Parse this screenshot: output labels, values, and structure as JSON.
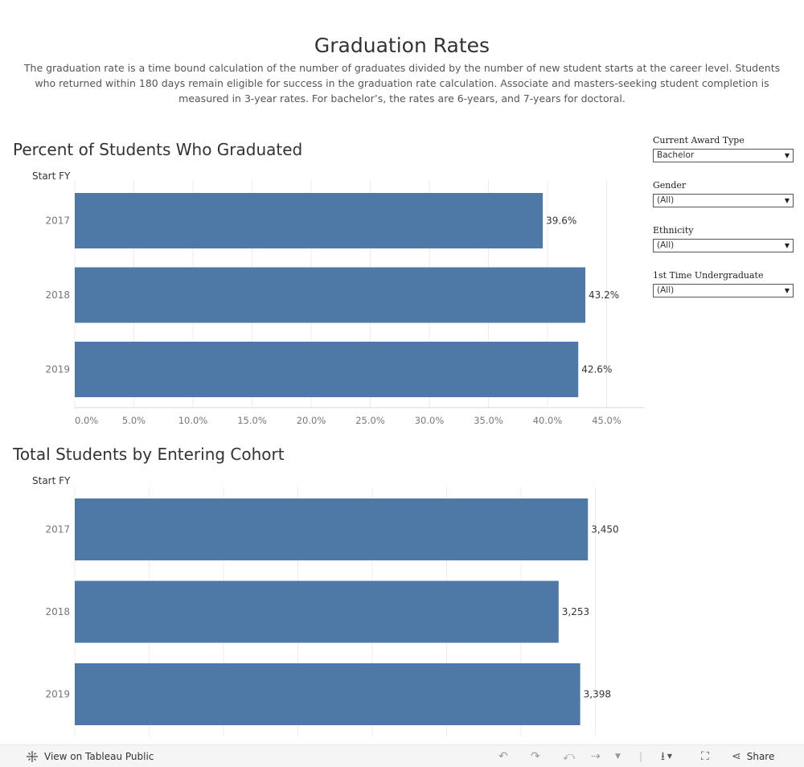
{
  "header": {
    "title": "Graduation Rates",
    "description": "The graduation rate is a time bound calculation of the number of graduates divided by the number of new student starts at the career level. Students who returned within 180 days remain eligible for success in the graduation rate calculation. Associate and masters-seeking student completion is measured in 3-year rates. For bachelor’s, the rates are 6-years, and 7-years for doctoral."
  },
  "chart_data": [
    {
      "type": "bar",
      "orientation": "horizontal",
      "title": "Percent of Students Who Graduated",
      "row_header": "Start FY",
      "categories": [
        "2017",
        "2018",
        "2019"
      ],
      "values": [
        39.6,
        43.2,
        42.6
      ],
      "value_labels": [
        "39.6%",
        "43.2%",
        "42.6%"
      ],
      "xlim": [
        0,
        48
      ],
      "ticks": [
        0,
        5,
        10,
        15,
        20,
        25,
        30,
        35,
        40,
        45
      ],
      "tick_labels": [
        "0.0%",
        "5.0%",
        "10.0%",
        "15.0%",
        "20.0%",
        "25.0%",
        "30.0%",
        "35.0%",
        "40.0%",
        "45.0%"
      ],
      "grid": true,
      "color": "#4e79a7"
    },
    {
      "type": "bar",
      "orientation": "horizontal",
      "title": "Total Students by Entering Cohort",
      "row_header": "Start FY",
      "categories": [
        "2017",
        "2018",
        "2019"
      ],
      "values": [
        3450,
        3253,
        3398
      ],
      "value_labels": [
        "3,450",
        "3,253",
        "3,398"
      ],
      "xlim": [
        0,
        3500
      ],
      "ticks": [
        0,
        500,
        1000,
        1500,
        2000,
        2500,
        3000,
        3500
      ],
      "tick_labels": [],
      "grid": true,
      "color": "#4e79a7"
    }
  ],
  "filters": [
    {
      "label": "Current Award Type",
      "value": "Bachelor"
    },
    {
      "label": "Gender",
      "value": "(All)"
    },
    {
      "label": "Ethnicity",
      "value": "(All)"
    },
    {
      "label": "1st Time Undergraduate",
      "value": "(All)"
    }
  ],
  "toolbar": {
    "view_label": "View on Tableau Public",
    "share_label": "Share",
    "icons": [
      "tableau-logo-icon",
      "undo-icon",
      "redo-icon",
      "revert-icon",
      "refresh-icon",
      "download-icon",
      "fullscreen-icon",
      "share-icon"
    ]
  }
}
